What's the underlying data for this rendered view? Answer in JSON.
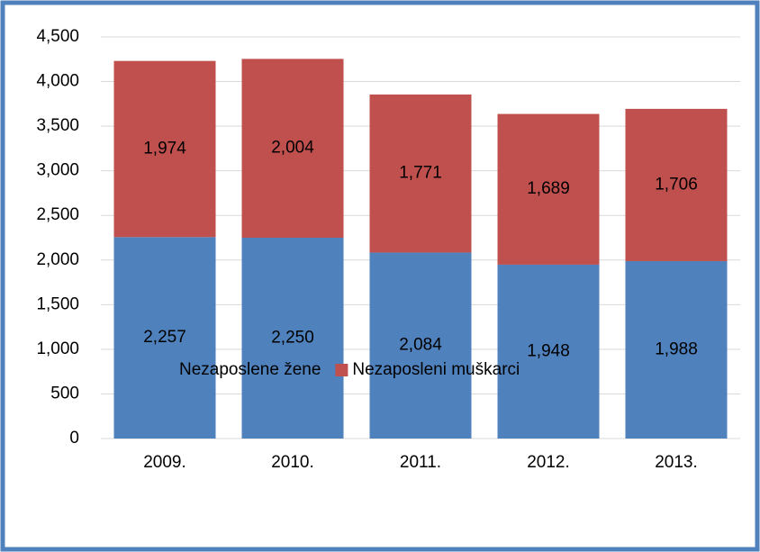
{
  "chart_data": {
    "type": "stacked-bar",
    "categories": [
      "2009.",
      "2010.",
      "2011.",
      "2012.",
      "2013."
    ],
    "series": [
      {
        "name": "Nezaposlene žene",
        "color": "#4f81bd",
        "values": [
          2257,
          2250,
          2084,
          1948,
          1988
        ],
        "value_labels": [
          "2,257",
          "2,250",
          "2,084",
          "1,948",
          "1,988"
        ]
      },
      {
        "name": "Nezaposleni muškarci",
        "color": "#c0504d",
        "values": [
          1974,
          2004,
          1771,
          1689,
          1706
        ],
        "value_labels": [
          "1,974",
          "2,004",
          "1,771",
          "1,689",
          "1,706"
        ]
      }
    ],
    "ylim": [
      0,
      4500
    ],
    "yticks": [
      0,
      500,
      {
        "value": 1000,
        "label": "1,000"
      },
      {
        "value": 1500,
        "label": "1,500"
      },
      {
        "value": 2000,
        "label": "2,000"
      },
      {
        "value": 2500,
        "label": "2,500"
      },
      {
        "value": 3000,
        "label": "3,000"
      },
      {
        "value": 3500,
        "label": "3,500"
      },
      {
        "value": 4000,
        "label": "4,000"
      },
      {
        "value": 4500,
        "label": "4,500"
      }
    ],
    "grid": true,
    "legend": "bottom"
  }
}
